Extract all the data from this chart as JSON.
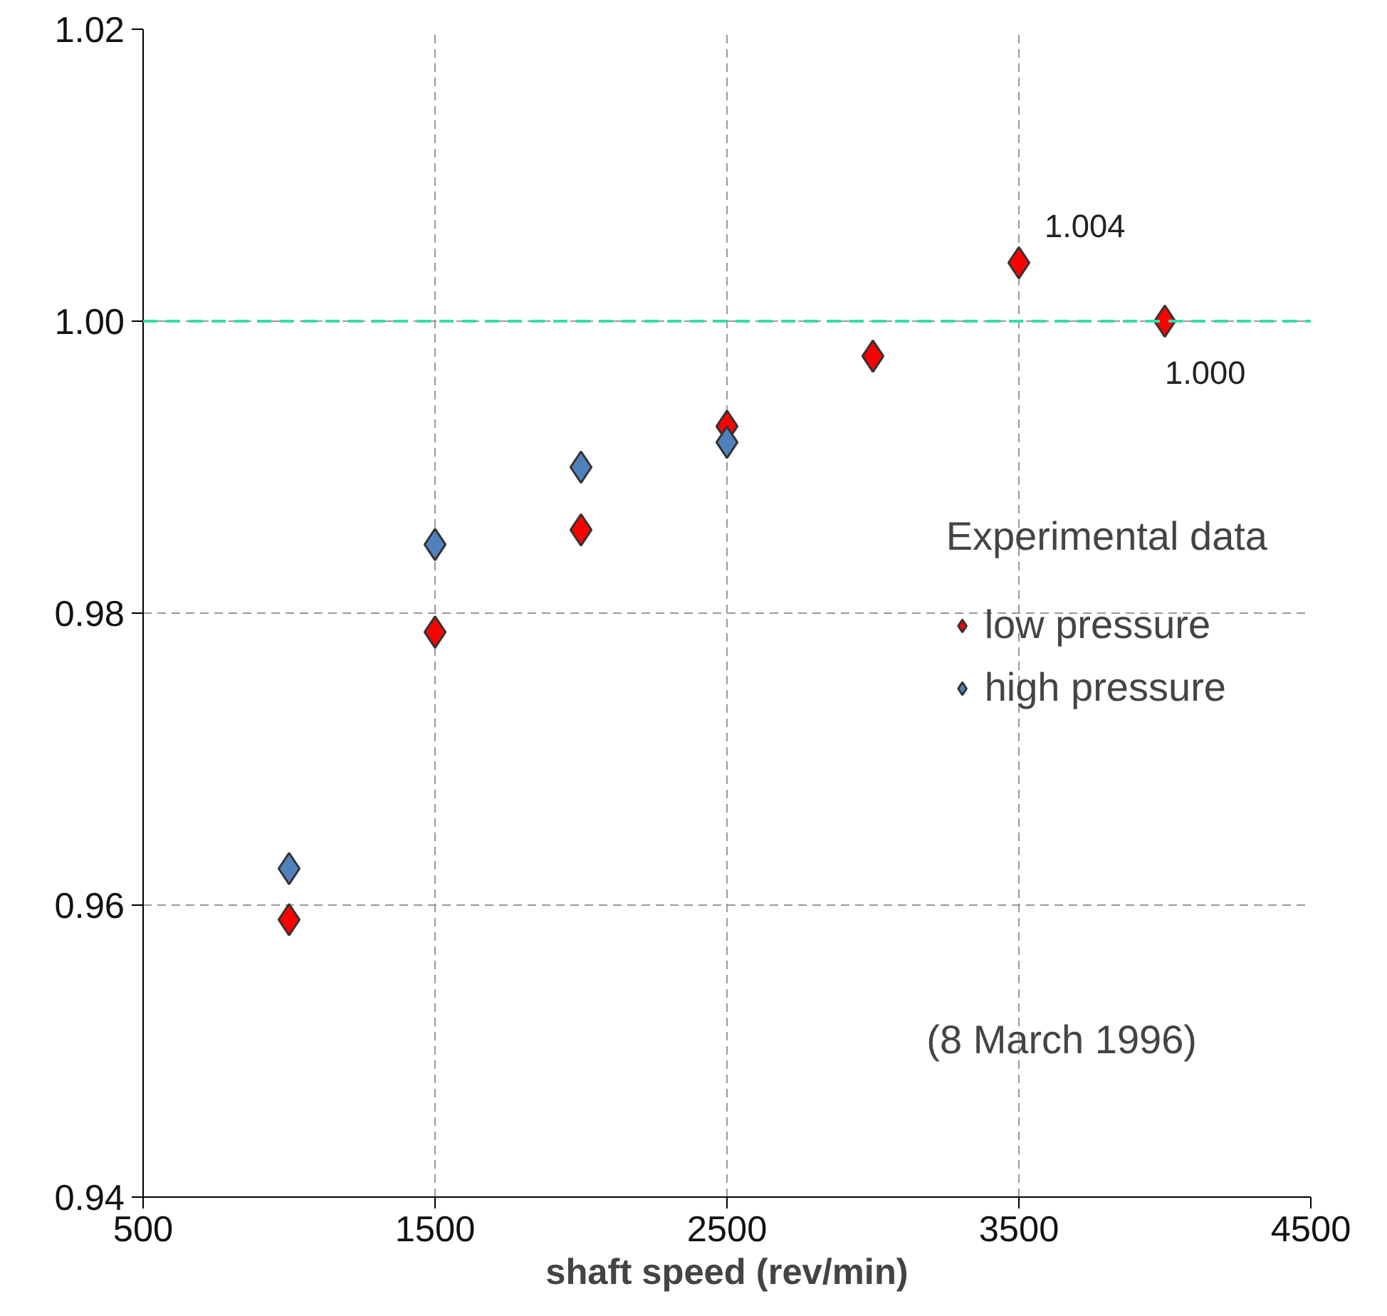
{
  "chart_data": {
    "type": "scatter",
    "xlabel": "shaft speed (rev/min)",
    "legend_title": "Experimental data",
    "legend": "right",
    "marker": "diamond",
    "grid": true,
    "xlim": [
      500,
      4500
    ],
    "xticks": [
      500,
      1500,
      2500,
      3500,
      4500
    ],
    "ylim": [
      0.94,
      1.02
    ],
    "yticks": [
      0.94,
      0.96,
      0.98,
      {
        "value": 1.0,
        "label": "1.00"
      },
      1.02
    ],
    "series": [
      {
        "name": "low pressure",
        "color": "#ff0000",
        "x": [
          1000,
          1500,
          2000,
          2500,
          3000,
          3500,
          4000
        ],
        "values": [
          0.959,
          0.9787,
          0.9857,
          0.9928,
          0.9976,
          1.004,
          1.0
        ],
        "value_labels": [
          null,
          null,
          null,
          null,
          null,
          "1.004",
          "1.000"
        ]
      },
      {
        "name": "high pressure",
        "color": "#4f81bd",
        "x": [
          1000,
          1500,
          2000,
          2500
        ],
        "values": [
          0.9625,
          0.9847,
          0.99,
          0.9917
        ]
      }
    ],
    "ref_lines": [
      {
        "axis": "y",
        "value": 1.0,
        "color": "#33ddaa",
        "line_style": "dashed"
      }
    ],
    "annotations": [
      "(8 March 1996)"
    ]
  }
}
